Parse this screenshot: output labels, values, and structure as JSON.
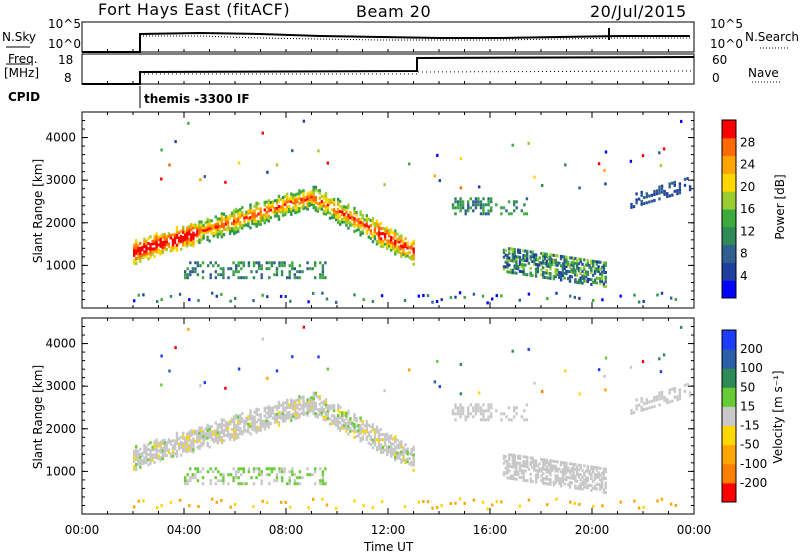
{
  "header": {
    "title": "Fort Hays East (fitACF)",
    "beam": "Beam 20",
    "date": "20/Jul/2015"
  },
  "param_panels": {
    "nsky_label": "N.Sky",
    "nsky_ticks": [
      "10^5",
      "10^0"
    ],
    "nsearch_label": "N.Search",
    "nsearch_ticks": [
      "10^5",
      "10^0"
    ],
    "freq_label_line1": "Freq.",
    "freq_label_line2": "[MHz]",
    "freq_ticks": [
      "18",
      "8"
    ],
    "nave_label": "Nave",
    "nave_ticks": [
      "60",
      "0"
    ],
    "cpid_label": "CPID",
    "cpid_text": "themis -3300 IF"
  },
  "chart_data": [
    {
      "type": "heatmap",
      "name": "power",
      "ylabel": "Slant Range [km]",
      "yticks": [
        1000,
        2000,
        3000,
        4000
      ],
      "ylim": [
        0,
        4600
      ],
      "xticks": [
        "00:00",
        "04:00",
        "08:00",
        "12:00",
        "16:00",
        "20:00",
        "00:00"
      ],
      "xlim": [
        0,
        24
      ],
      "colorbar": {
        "label": "Power [dB]",
        "ticks": [
          "4",
          "8",
          "12",
          "16",
          "20",
          "24",
          "28"
        ],
        "colors": [
          "#0000ff",
          "#1f3f9f",
          "#2f5f8f",
          "#2e8b57",
          "#3caa3c",
          "#9acd32",
          "#ffd700",
          "#ffa500",
          "#ff6a00",
          "#ff0000"
        ]
      },
      "echo_regions": [
        {
          "t0": 2.0,
          "t1": 13.0,
          "range_center": "arc 1300-2600 km",
          "power": "high"
        },
        {
          "t0": 14.5,
          "t1": 17.5,
          "range_center": 2400,
          "power": "low"
        },
        {
          "t0": 16.5,
          "t1": 20.5,
          "range_center": 1000,
          "power": "medium"
        },
        {
          "t0": 21.5,
          "t1": 24.0,
          "range_center": 2700,
          "power": "low"
        }
      ]
    },
    {
      "type": "heatmap",
      "name": "velocity",
      "ylabel": "Slant Range [km]",
      "yticks": [
        1000,
        2000,
        3000,
        4000
      ],
      "ylim": [
        0,
        4600
      ],
      "xticks": [
        "00:00",
        "04:00",
        "08:00",
        "12:00",
        "16:00",
        "20:00",
        "00:00"
      ],
      "xlim": [
        0,
        24
      ],
      "xlabel": "Time UT",
      "colorbar": {
        "label": "Velocity [m s⁻¹]",
        "ticks": [
          "200",
          "100",
          "50",
          "15",
          "-15",
          "-50",
          "-100",
          "-200"
        ],
        "colors": [
          "#1e3cff",
          "#2b5fa8",
          "#2e8b57",
          "#66cc33",
          "#c8c8c8",
          "#ffd700",
          "#ffa500",
          "#ff7f00",
          "#ff0000"
        ]
      }
    }
  ]
}
